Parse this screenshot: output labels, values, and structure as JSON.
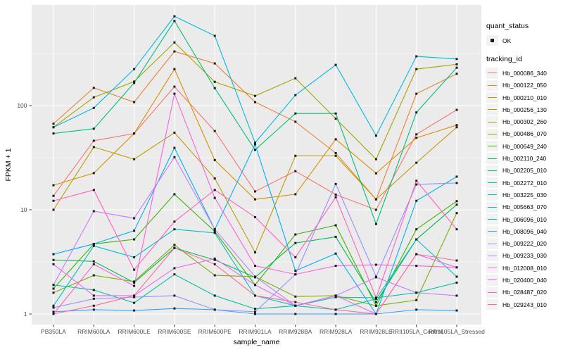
{
  "figure": {
    "background": "#FFFFFF",
    "panel_background": "#EBEBEB",
    "gridline_color": "#FFFFFF",
    "point_color": "#1A1A1A",
    "axis_text_color": "#4D4D4D",
    "tick_color": "#333333"
  },
  "axes": {
    "x_title": "sample_name",
    "y_title": "FPKM + 1",
    "y_tick_labels": [
      "1",
      "10",
      "100"
    ],
    "x_tick_labels": [
      "PB350LA",
      "RRIM600LA",
      "RRIM600LE",
      "RRIM600SE",
      "RRIM600PE",
      "RRIM901LA",
      "RRIM928BA",
      "RRIM928LA",
      "RRIM928LE",
      "RRII105LA_Control",
      "RRII105LA_Stressed"
    ]
  },
  "legend": {
    "quant_status_title": "quant_status",
    "quant_status_items": [
      {
        "label": "OK",
        "marker": "black-square"
      }
    ],
    "tracking_id_title": "tracking_id"
  },
  "chart_data": {
    "type": "line",
    "title": "",
    "xlabel": "sample_name",
    "ylabel": "FPKM + 1",
    "yscale": "log10",
    "yticks": [
      1,
      10,
      100
    ],
    "ylim": [
      1,
      912
    ],
    "grid": true,
    "legend_position": "right",
    "point_marker": "small-black-square",
    "x_categories": [
      "PB350LA",
      "RRIM600LA",
      "RRIM600LE",
      "RRIM600SE",
      "RRIM600PE",
      "RRIM901LA",
      "RRIM928BA",
      "RRIM928LA",
      "RRIM928LE",
      "RRII105LA_Control",
      "RRII105LA_Stressed"
    ],
    "series": [
      {
        "name": "Hb_000086_340",
        "color": "#F8766D",
        "values": [
          13.6,
          46,
          54,
          152,
          57,
          15,
          23.5,
          14,
          10,
          53,
          91
        ]
      },
      {
        "name": "Hb_000122_050",
        "color": "#EA8331",
        "values": [
          67,
          148,
          108,
          331,
          254,
          108,
          70,
          35,
          12.6,
          130,
          202
        ]
      },
      {
        "name": "Hb_000210_010",
        "color": "#D89000",
        "values": [
          17.2,
          22.5,
          54,
          224,
          30,
          12.6,
          14.1,
          47.5,
          22.4,
          49,
          65
        ]
      },
      {
        "name": "Hb_000256_130",
        "color": "#C09B00",
        "values": [
          10,
          40,
          30.6,
          55,
          20,
          3.9,
          33,
          33,
          12.6,
          28.3,
          62
        ]
      },
      {
        "name": "Hb_000302_260",
        "color": "#A3A500",
        "values": [
          62,
          120,
          170,
          404,
          169,
          124,
          183,
          75,
          30.6,
          224,
          249
        ]
      },
      {
        "name": "Hb_000486_070",
        "color": "#7CAE00",
        "values": [
          1.6,
          2.35,
          2.05,
          4.6,
          2.35,
          2.28,
          1.47,
          1.5,
          1.2,
          1.36,
          9.3
        ]
      },
      {
        "name": "Hb_000649_240",
        "color": "#39B600",
        "values": [
          1.75,
          4.7,
          5.2,
          14.1,
          6.2,
          1.9,
          5.8,
          7.1,
          1.2,
          6.5,
          12.1
        ]
      },
      {
        "name": "Hb_002110_240",
        "color": "#00BB4E",
        "values": [
          3.3,
          3.2,
          2.0,
          4.3,
          3.3,
          2.25,
          4.8,
          5.5,
          1.3,
          5.2,
          11.2
        ]
      },
      {
        "name": "Hb_002205_010",
        "color": "#00BF7D",
        "values": [
          54,
          60,
          165,
          650,
          147,
          37.6,
          84,
          84,
          7.3,
          86,
          231
        ]
      },
      {
        "name": "Hb_002272_010",
        "color": "#00C1A3",
        "values": [
          1.9,
          1.7,
          1.28,
          2.4,
          1.5,
          1.12,
          1.2,
          1.45,
          1.43,
          1.6,
          2.0
        ]
      },
      {
        "name": "Hb_003225_030",
        "color": "#00BFC4",
        "values": [
          1.2,
          4.5,
          3.5,
          6.5,
          6.0,
          1.5,
          1.2,
          1.1,
          1.4,
          5.2,
          2.28
        ]
      },
      {
        "name": "Hb_005663_070",
        "color": "#00BAE0",
        "values": [
          62,
          95,
          224,
          720,
          467,
          44,
          126,
          246,
          51.4,
          297,
          280
        ]
      },
      {
        "name": "Hb_006096_010",
        "color": "#00B0F6",
        "values": [
          3.75,
          4.7,
          6.3,
          39.3,
          6.5,
          42.5,
          2.6,
          3.8,
          1.0,
          12.2,
          20.8
        ]
      },
      {
        "name": "Hb_008096_040",
        "color": "#35A2FF",
        "values": [
          1.05,
          1.1,
          1.08,
          1.13,
          1.1,
          1.0,
          1.0,
          1.0,
          1.0,
          1.1,
          1.08
        ]
      },
      {
        "name": "Hb_009222_020",
        "color": "#9590FF",
        "values": [
          1.15,
          1.4,
          1.45,
          1.5,
          1.1,
          1.05,
          2.4,
          17.7,
          2.28,
          17.5,
          18.1
        ]
      },
      {
        "name": "Hb_009233_030",
        "color": "#C77CFF",
        "values": [
          1.9,
          9.7,
          8.3,
          32,
          6.5,
          2.28,
          1.2,
          1.5,
          2.25,
          1.6,
          1.5
        ]
      },
      {
        "name": "Hb_012008_010",
        "color": "#E76BF3",
        "values": [
          3.0,
          1.5,
          1.5,
          2.75,
          3.4,
          1.9,
          1.2,
          1.5,
          1.0,
          3.75,
          2.8
        ]
      },
      {
        "name": "Hb_020400_040",
        "color": "#FA62DB",
        "values": [
          1.0,
          3.0,
          1.86,
          130,
          13.0,
          2.9,
          2.4,
          2.9,
          2.97,
          2.9,
          2.8
        ]
      },
      {
        "name": "Hb_028487_020",
        "color": "#FF62BC",
        "values": [
          12.2,
          15.5,
          2.66,
          7.7,
          15.5,
          8.5,
          3.5,
          13.2,
          1.43,
          19,
          6.5
        ]
      },
      {
        "name": "Hb_029243_010",
        "color": "#FF6A98",
        "values": [
          1.0,
          1.2,
          1.5,
          4.3,
          3.0,
          1.5,
          1.3,
          1.1,
          1.0,
          3.75,
          3.26
        ]
      }
    ]
  }
}
